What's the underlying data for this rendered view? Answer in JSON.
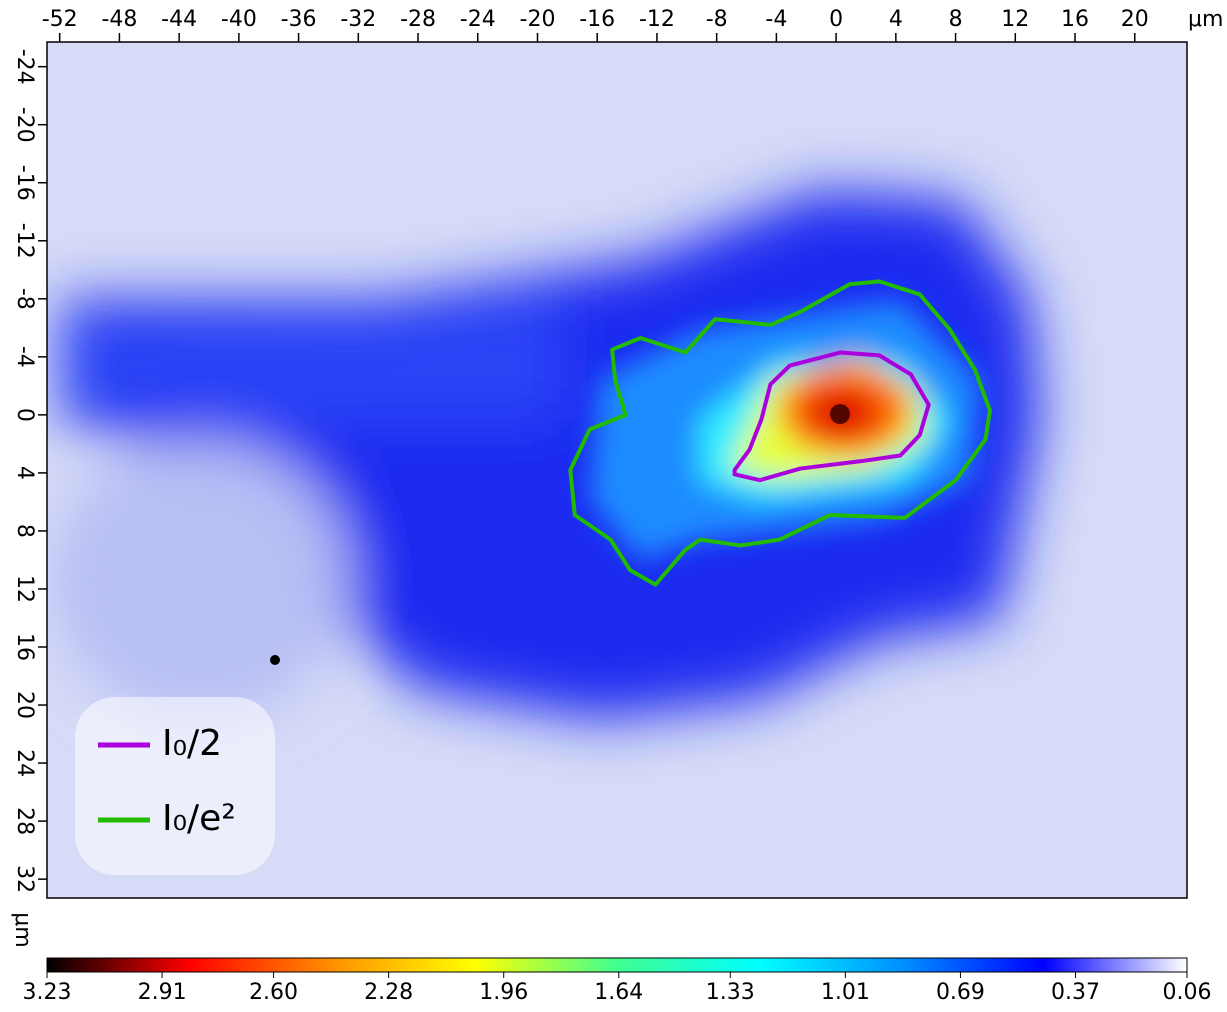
{
  "chart_data": {
    "type": "contour",
    "xlabel": "μm",
    "ylabel": "μm",
    "xlim": [
      -52.85,
      23.5
    ],
    "ylim": [
      -25.7,
      33.3
    ],
    "xticks": [
      -52,
      -48,
      -44,
      -40,
      -36,
      -32,
      -28,
      -24,
      -20,
      -16,
      -12,
      -8,
      -4,
      0,
      4,
      8,
      12,
      16,
      20
    ],
    "yticks": [
      -24,
      -20,
      -16,
      -12,
      -8,
      -4,
      0,
      4,
      8,
      12,
      16,
      20,
      24,
      28,
      32
    ],
    "series": [
      {
        "name": "I₀/2",
        "color": "#aa00dd",
        "x": [
          -6.8,
          -5.8,
          -5.0,
          -4.4,
          -3.1,
          0.3,
          2.9,
          5.0,
          6.2,
          5.6,
          4.3,
          1.6,
          -2.4,
          -5.1,
          -6.8
        ],
        "y": [
          3.8,
          2.4,
          0.3,
          -2.1,
          -3.4,
          -4.3,
          -4.1,
          -2.8,
          -0.7,
          1.4,
          2.8,
          3.2,
          3.7,
          4.5,
          4.1
        ]
      },
      {
        "name": "I₀/e²",
        "color": "#22bb00",
        "x": [
          -15.0,
          -13.1,
          -10.1,
          -8.1,
          -4.4,
          -2.4,
          0.9,
          2.9,
          5.6,
          7.6,
          9.3,
          10.3,
          10.0,
          8.0,
          4.6,
          -0.4,
          -3.8,
          -6.4,
          -9.1,
          -10.1,
          -12.1,
          -13.8,
          -15.1,
          -17.5,
          -17.8,
          -16.5,
          -14.1,
          -14.8
        ],
        "y": [
          -4.5,
          -5.3,
          -4.3,
          -6.6,
          -6.2,
          -7.1,
          -9.0,
          -9.2,
          -8.3,
          -5.9,
          -3.1,
          -0.3,
          1.7,
          4.5,
          7.1,
          6.9,
          8.6,
          9.0,
          8.6,
          9.3,
          11.7,
          10.7,
          8.6,
          6.9,
          3.8,
          1.0,
          0.0,
          -2.4
        ]
      }
    ],
    "colorbar": {
      "clim": [
        3.23,
        0.06
      ],
      "colormap": [
        "#000000",
        "#ff0000",
        "#ff9000",
        "#ffff00",
        "#40ff90",
        "#00ffff",
        "#0090ff",
        "#0000ff",
        "#ffffff"
      ],
      "ticks": [
        3.23,
        2.91,
        {
          "value": 2.6,
          "label": "2.60"
        },
        2.28,
        1.96,
        1.64,
        1.33,
        1.01,
        0.69,
        0.37,
        0.06
      ]
    }
  }
}
